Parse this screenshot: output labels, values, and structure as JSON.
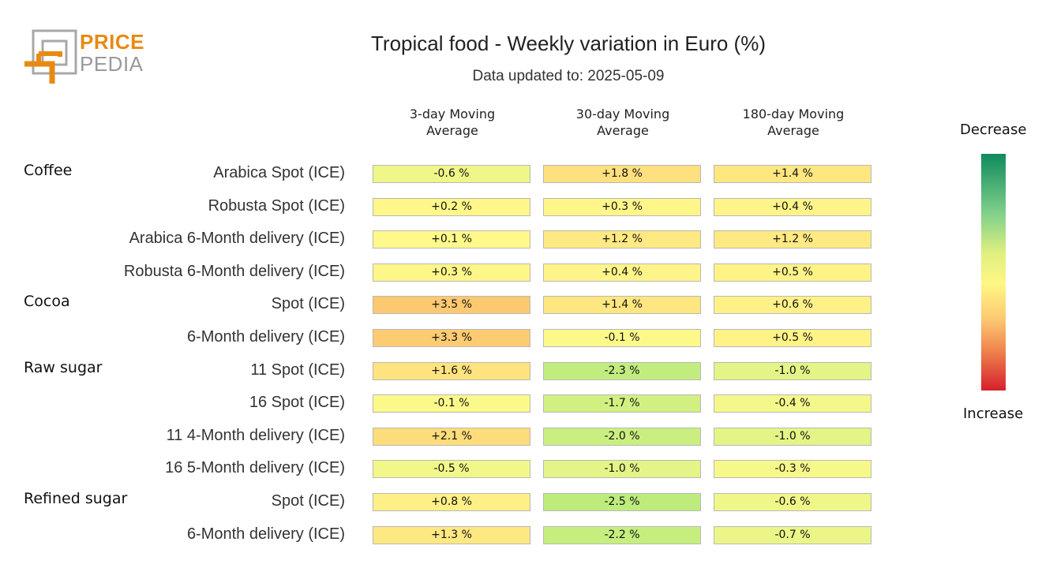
{
  "logo": {
    "word1": "PRICE",
    "word2": "PEDIA"
  },
  "title": "Tropical food - Weekly variation in Euro (%)",
  "subtitle": "Data updated to: 2025-05-09",
  "legend": {
    "top": "Decrease",
    "bottom": "Increase"
  },
  "columns": [
    {
      "line1": "3-day Moving",
      "line2": "Average"
    },
    {
      "line1": "30-day Moving",
      "line2": "Average"
    },
    {
      "line1": "180-day Moving",
      "line2": "Average"
    }
  ],
  "groups": [
    "Coffee",
    "Cocoa",
    "Raw sugar",
    "Refined sugar"
  ],
  "rows": [
    {
      "label": "Arabica Spot (ICE)",
      "cells": [
        "-0.6 %",
        "+1.8 %",
        "+1.4 %"
      ]
    },
    {
      "label": "Robusta Spot (ICE)",
      "cells": [
        "+0.2 %",
        "+0.3 %",
        "+0.4 %"
      ]
    },
    {
      "label": "Arabica 6-Month delivery (ICE)",
      "cells": [
        "+0.1 %",
        "+1.2 %",
        "+1.2 %"
      ]
    },
    {
      "label": "Robusta 6-Month delivery (ICE)",
      "cells": [
        "+0.3 %",
        "+0.4 %",
        "+0.5 %"
      ]
    },
    {
      "label": "Spot (ICE)",
      "cells": [
        "+3.5 %",
        "+1.4 %",
        "+0.6 %"
      ]
    },
    {
      "label": "6-Month delivery (ICE)",
      "cells": [
        "+3.3 %",
        "-0.1 %",
        "+0.5 %"
      ]
    },
    {
      "label": "11 Spot (ICE)",
      "cells": [
        "+1.6 %",
        "-2.3 %",
        "-1.0 %"
      ]
    },
    {
      "label": "16 Spot (ICE)",
      "cells": [
        "-0.1 %",
        "-1.7 %",
        "-0.4 %"
      ]
    },
    {
      "label": "11 4-Month delivery (ICE)",
      "cells": [
        "+2.1 %",
        "-2.0 %",
        "-1.0 %"
      ]
    },
    {
      "label": "16 5-Month delivery (ICE)",
      "cells": [
        "-0.5 %",
        "-1.0 %",
        "-0.3 %"
      ]
    },
    {
      "label": "Spot (ICE)",
      "cells": [
        "+0.8 %",
        "-2.5 %",
        "-0.6 %"
      ]
    },
    {
      "label": "6-Month delivery (ICE)",
      "cells": [
        "+1.3 %",
        "-2.2 %",
        "-0.7 %"
      ]
    }
  ],
  "chart_data": {
    "type": "heatmap",
    "title": "Tropical food - Weekly variation in Euro (%)",
    "subtitle": "Data updated to: 2025-05-09",
    "columns": [
      "3-day Moving Average",
      "30-day Moving Average",
      "180-day Moving Average"
    ],
    "groups": [
      {
        "name": "Coffee",
        "rows": [
          "Arabica Spot (ICE)",
          "Robusta Spot (ICE)",
          "Arabica 6-Month delivery (ICE)",
          "Robusta 6-Month delivery (ICE)"
        ]
      },
      {
        "name": "Cocoa",
        "rows": [
          "Spot (ICE)",
          "6-Month delivery (ICE)"
        ]
      },
      {
        "name": "Raw sugar",
        "rows": [
          "11 Spot (ICE)",
          "16 Spot (ICE)",
          "11 4-Month delivery (ICE)",
          "16 5-Month delivery (ICE)"
        ]
      },
      {
        "name": "Refined sugar",
        "rows": [
          "Spot (ICE)",
          "6-Month delivery (ICE)"
        ]
      }
    ],
    "values": [
      [
        -0.6,
        1.8,
        1.4
      ],
      [
        0.2,
        0.3,
        0.4
      ],
      [
        0.1,
        1.2,
        1.2
      ],
      [
        0.3,
        0.4,
        0.5
      ],
      [
        3.5,
        1.4,
        0.6
      ],
      [
        3.3,
        -0.1,
        0.5
      ],
      [
        1.6,
        -2.3,
        -1.0
      ],
      [
        -0.1,
        -1.7,
        -0.4
      ],
      [
        2.1,
        -2.0,
        -1.0
      ],
      [
        -0.5,
        -1.0,
        -0.3
      ],
      [
        0.8,
        -2.5,
        -0.6
      ],
      [
        1.3,
        -2.2,
        -0.7
      ]
    ],
    "unit": "%",
    "legend": {
      "top": "Decrease",
      "bottom": "Increase",
      "placement": "right"
    },
    "colors": {
      "decrease": "#0f8a5e",
      "neutral": "#fff685",
      "increase": "#d6202c"
    }
  }
}
